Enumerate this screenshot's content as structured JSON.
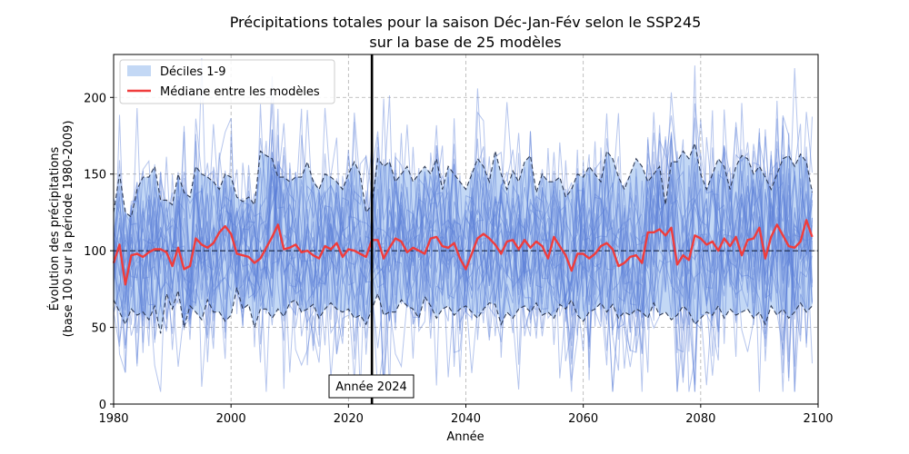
{
  "chart_data": {
    "type": "line",
    "title_line1": "Précipitations totales pour la saison Déc-Jan-Fév selon le SSP245",
    "title_line2": "sur la base de 25 modèles",
    "xlabel": "Année",
    "ylabel_line1": "Évolution des précipitations",
    "ylabel_line2": "(base 100 sur la période 1980-2009)",
    "xlim": [
      1980,
      2100
    ],
    "ylim": [
      0,
      228
    ],
    "xticks": [
      1980,
      2000,
      2020,
      2040,
      2060,
      2080,
      2100
    ],
    "yticks": [
      0,
      50,
      100,
      150,
      200
    ],
    "grid": true,
    "legend_position": "top-left",
    "legend": {
      "band_label": "Déciles 1-9",
      "median_label": "Médiane entre les modèles"
    },
    "annotation": {
      "x": 2024,
      "text": "Année 2024"
    },
    "reference_line_y": 100,
    "colors": {
      "band": "#c3d8f5",
      "models": "#5a7fd8",
      "median": "#f03c3c",
      "deciles": "#2e3a55",
      "reference": "#1a2540",
      "marker": "#000000"
    },
    "model_count": 25,
    "x": [
      1980,
      1981,
      1982,
      1983,
      1984,
      1985,
      1986,
      1987,
      1988,
      1989,
      1990,
      1991,
      1992,
      1993,
      1994,
      1995,
      1996,
      1997,
      1998,
      1999,
      2000,
      2001,
      2002,
      2003,
      2004,
      2005,
      2006,
      2007,
      2008,
      2009,
      2010,
      2011,
      2012,
      2013,
      2014,
      2015,
      2016,
      2017,
      2018,
      2019,
      2020,
      2021,
      2022,
      2023,
      2024,
      2025,
      2026,
      2027,
      2028,
      2029,
      2030,
      2031,
      2032,
      2033,
      2034,
      2035,
      2036,
      2037,
      2038,
      2039,
      2040,
      2041,
      2042,
      2043,
      2044,
      2045,
      2046,
      2047,
      2048,
      2049,
      2050,
      2051,
      2052,
      2053,
      2054,
      2055,
      2056,
      2057,
      2058,
      2059,
      2060,
      2061,
      2062,
      2063,
      2064,
      2065,
      2066,
      2067,
      2068,
      2069,
      2070,
      2071,
      2072,
      2073,
      2074,
      2075,
      2076,
      2077,
      2078,
      2079,
      2080,
      2081,
      2082,
      2083,
      2084,
      2085,
      2086,
      2087,
      2088,
      2089,
      2090,
      2091,
      2092,
      2093,
      2094,
      2095,
      2096,
      2097,
      2098,
      2099
    ],
    "median": [
      92,
      104,
      78,
      97,
      98,
      96,
      99,
      101,
      101,
      99,
      90,
      102,
      88,
      90,
      108,
      104,
      102,
      105,
      112,
      116,
      111,
      98,
      97,
      96,
      92,
      95,
      102,
      109,
      117,
      101,
      102,
      104,
      99,
      100,
      97,
      95,
      103,
      101,
      105,
      96,
      101,
      100,
      98,
      96,
      107,
      107,
      95,
      102,
      108,
      106,
      99,
      102,
      100,
      98,
      108,
      109,
      103,
      102,
      105,
      95,
      88,
      98,
      108,
      111,
      108,
      104,
      98,
      106,
      107,
      101,
      107,
      102,
      106,
      103,
      95,
      109,
      103,
      97,
      87,
      98,
      98,
      95,
      98,
      103,
      105,
      101,
      90,
      92,
      96,
      97,
      92,
      112,
      112,
      114,
      110,
      115,
      91,
      97,
      94,
      110,
      108,
      104,
      106,
      100,
      108,
      103,
      109,
      97,
      107,
      108,
      115,
      95,
      109,
      117,
      110,
      103,
      102,
      106,
      120,
      109
    ],
    "decile_upper": [
      125,
      150,
      125,
      122,
      140,
      148,
      148,
      155,
      133,
      133,
      130,
      150,
      138,
      135,
      155,
      150,
      148,
      145,
      140,
      150,
      148,
      135,
      132,
      135,
      130,
      165,
      162,
      160,
      148,
      148,
      145,
      148,
      148,
      158,
      145,
      140,
      150,
      148,
      145,
      140,
      150,
      158,
      150,
      125,
      130,
      160,
      155,
      158,
      145,
      150,
      155,
      145,
      150,
      155,
      150,
      160,
      140,
      155,
      150,
      145,
      140,
      150,
      160,
      155,
      145,
      165,
      150,
      140,
      152,
      145,
      158,
      162,
      138,
      150,
      145,
      145,
      148,
      135,
      140,
      150,
      148,
      155,
      150,
      145,
      165,
      160,
      148,
      140,
      150,
      160,
      155,
      145,
      150,
      155,
      130,
      158,
      158,
      165,
      160,
      170,
      150,
      140,
      150,
      160,
      155,
      140,
      155,
      162,
      160,
      150,
      155,
      148,
      140,
      150,
      160,
      162,
      155,
      163,
      158,
      138
    ],
    "decile_lower": [
      68,
      60,
      52,
      62,
      58,
      60,
      55,
      64,
      46,
      72,
      62,
      74,
      50,
      64,
      60,
      55,
      68,
      60,
      60,
      54,
      58,
      76,
      62,
      65,
      50,
      62,
      62,
      56,
      62,
      57,
      66,
      68,
      60,
      62,
      65,
      56,
      62,
      66,
      62,
      60,
      62,
      56,
      58,
      52,
      62,
      72,
      58,
      60,
      60,
      68,
      64,
      62,
      56,
      70,
      64,
      56,
      62,
      64,
      58,
      62,
      64,
      60,
      56,
      62,
      66,
      65,
      52,
      60,
      56,
      62,
      64,
      60,
      66,
      58,
      60,
      56,
      65,
      62,
      68,
      58,
      54,
      60,
      62,
      66,
      60,
      65,
      56,
      60,
      58,
      62,
      60,
      56,
      66,
      58,
      60,
      55,
      58,
      64,
      60,
      52,
      56,
      60,
      58,
      64,
      56,
      62,
      58,
      60,
      62,
      56,
      60,
      52,
      64,
      58,
      62,
      56,
      60,
      66,
      60,
      64
    ]
  }
}
